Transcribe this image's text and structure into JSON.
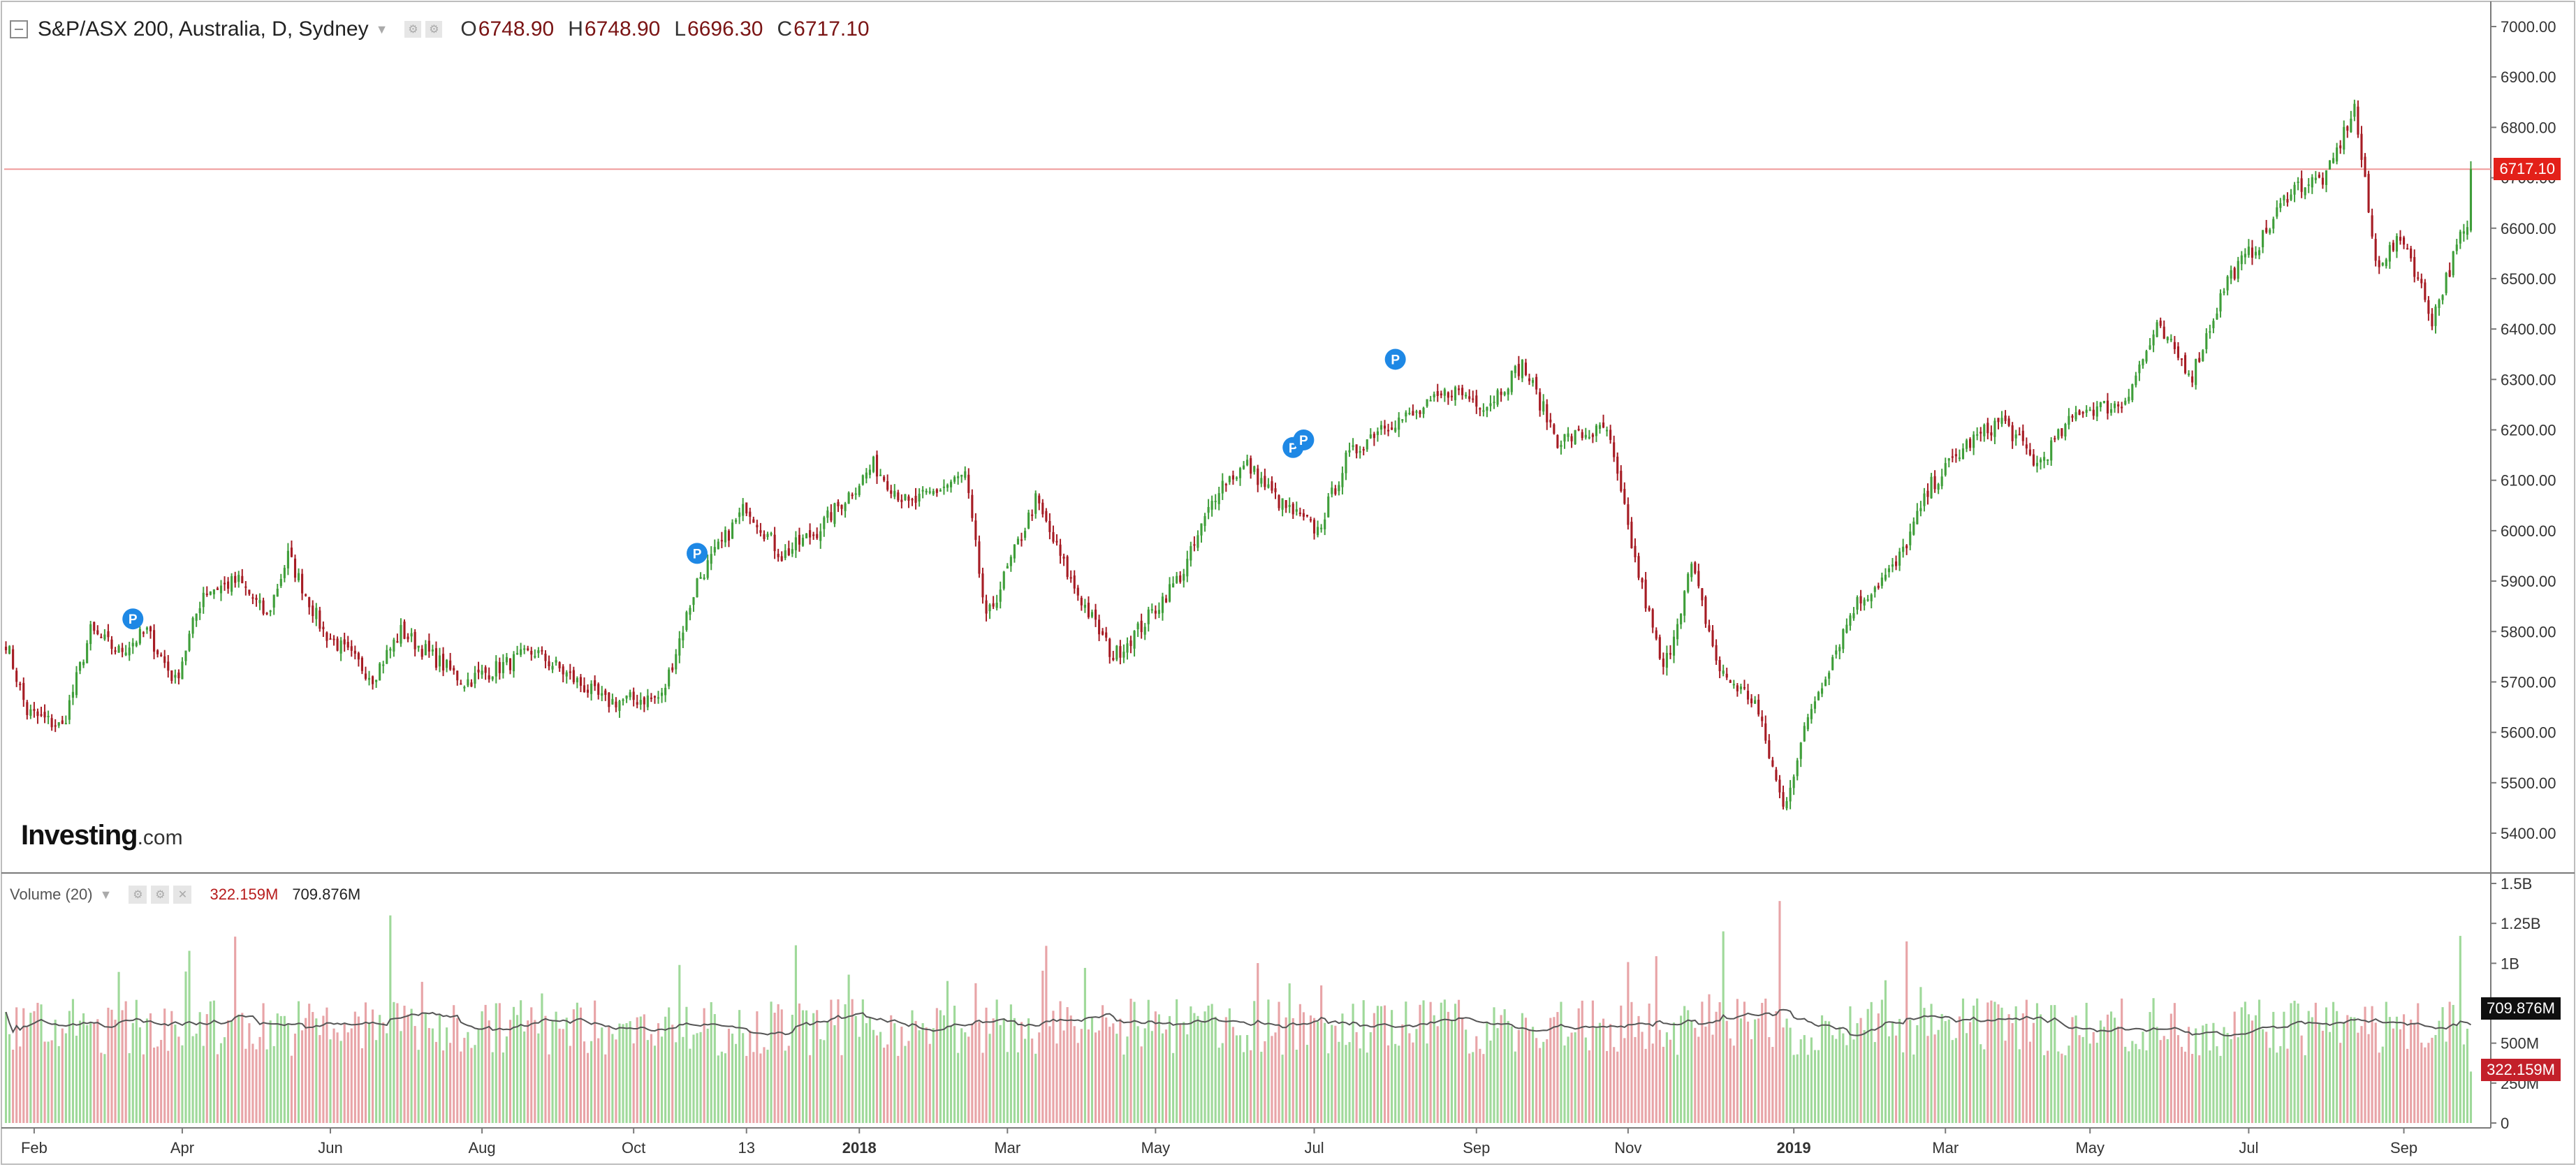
{
  "legend": {
    "symbol": "S&P/ASX 200, Australia, D, Sydney",
    "ohlc": [
      {
        "label": "O",
        "value": "6748.90"
      },
      {
        "label": "H",
        "value": "6748.90"
      },
      {
        "label": "L",
        "value": "6696.30"
      },
      {
        "label": "C",
        "value": "6717.10"
      }
    ]
  },
  "volume_legend": {
    "title": "Volume (20)",
    "value_1": "322.159M",
    "value_2": "709.876M"
  },
  "logo": {
    "text": "Investing",
    "suffix": ".com"
  },
  "last_price_tag": "6717.10",
  "volume_tags": {
    "ma": "709.876M",
    "last": "322.159M"
  },
  "colors": {
    "up": "#3f9e3a",
    "down": "#a61c24",
    "volume_up": "#9fd99a",
    "volume_down": "#e8a4a7",
    "price_line": "#ef9a9a",
    "price_tag": "#e32019",
    "volume_ma": "#555555"
  },
  "icons": [
    "collapse-icon",
    "dropdown-caret-icon",
    "settings-icon",
    "hide-icon",
    "close-icon",
    "dividend-marker-icon"
  ],
  "chart_data": [
    {
      "type": "candlestick",
      "title": "S&P/ASX 200, Australia, D, Sydney",
      "y_ticks": [
        "7000.00",
        "6900.00",
        "6800.00",
        "6700.00",
        "6600.00",
        "6500.00",
        "6400.00",
        "6300.00",
        "6200.00",
        "6100.00",
        "6000.00",
        "5900.00",
        "5800.00",
        "5700.00",
        "5600.00",
        "5500.00",
        "5400.00"
      ],
      "ylim": [
        5355,
        7030
      ],
      "x_ticks": [
        {
          "label": "Feb",
          "t": 8
        },
        {
          "label": "Apr",
          "t": 50
        },
        {
          "label": "Jun",
          "t": 92
        },
        {
          "label": "Aug",
          "t": 135
        },
        {
          "label": "Oct",
          "t": 178
        },
        {
          "label": "13",
          "t": 210
        },
        {
          "label": "2018",
          "t": 242,
          "bold": true
        },
        {
          "label": "Mar",
          "t": 284
        },
        {
          "label": "May",
          "t": 326
        },
        {
          "label": "Jul",
          "t": 371
        },
        {
          "label": "Sep",
          "t": 417
        },
        {
          "label": "Nov",
          "t": 460
        },
        {
          "label": "2019",
          "t": 507,
          "bold": true
        },
        {
          "label": "Mar",
          "t": 550
        },
        {
          "label": "May",
          "t": 591
        },
        {
          "label": "Jul",
          "t": 636
        },
        {
          "label": "Sep",
          "t": 680
        }
      ],
      "bar_count": 700,
      "close_anchors": [
        [
          0,
          5780
        ],
        [
          6,
          5640
        ],
        [
          16,
          5610
        ],
        [
          24,
          5800
        ],
        [
          32,
          5760
        ],
        [
          40,
          5800
        ],
        [
          48,
          5700
        ],
        [
          56,
          5880
        ],
        [
          66,
          5900
        ],
        [
          74,
          5830
        ],
        [
          80,
          5950
        ],
        [
          90,
          5800
        ],
        [
          104,
          5710
        ],
        [
          112,
          5800
        ],
        [
          130,
          5700
        ],
        [
          150,
          5760
        ],
        [
          170,
          5660
        ],
        [
          186,
          5670
        ],
        [
          196,
          5900
        ],
        [
          210,
          6050
        ],
        [
          220,
          5950
        ],
        [
          230,
          6000
        ],
        [
          240,
          6080
        ],
        [
          246,
          6130
        ],
        [
          256,
          6050
        ],
        [
          272,
          6110
        ],
        [
          278,
          5820
        ],
        [
          292,
          6060
        ],
        [
          302,
          5900
        ],
        [
          314,
          5750
        ],
        [
          322,
          5810
        ],
        [
          334,
          5920
        ],
        [
          344,
          6090
        ],
        [
          352,
          6130
        ],
        [
          362,
          6050
        ],
        [
          372,
          6000
        ],
        [
          380,
          6140
        ],
        [
          390,
          6210
        ],
        [
          400,
          6230
        ],
        [
          410,
          6280
        ],
        [
          420,
          6250
        ],
        [
          430,
          6330
        ],
        [
          440,
          6180
        ],
        [
          454,
          6200
        ],
        [
          462,
          5940
        ],
        [
          470,
          5720
        ],
        [
          478,
          5930
        ],
        [
          486,
          5720
        ],
        [
          496,
          5660
        ],
        [
          504,
          5450
        ],
        [
          512,
          5650
        ],
        [
          524,
          5850
        ],
        [
          536,
          5930
        ],
        [
          546,
          6090
        ],
        [
          556,
          6170
        ],
        [
          566,
          6220
        ],
        [
          576,
          6130
        ],
        [
          588,
          6240
        ],
        [
          600,
          6250
        ],
        [
          610,
          6400
        ],
        [
          620,
          6310
        ],
        [
          630,
          6500
        ],
        [
          640,
          6580
        ],
        [
          648,
          6680
        ],
        [
          658,
          6700
        ],
        [
          666,
          6840
        ],
        [
          672,
          6530
        ],
        [
          680,
          6580
        ],
        [
          688,
          6420
        ],
        [
          696,
          6580
        ],
        [
          706,
          6660
        ],
        [
          714,
          6720
        ]
      ],
      "dividend_markers": [
        {
          "t": 36,
          "y": 5825
        },
        {
          "t": 196,
          "y": 5955
        },
        {
          "t": 365,
          "y": 6165
        },
        {
          "t": 368,
          "y": 6180
        },
        {
          "t": 394,
          "y": 6340
        }
      ],
      "last_close": 6717.1
    },
    {
      "type": "bar",
      "title": "Volume (20)",
      "y_ticks": [
        "1.5B",
        "1.25B",
        "1B",
        "750M",
        "500M",
        "250M",
        "0"
      ],
      "ylim": [
        0,
        1500000000
      ],
      "ma_period": 20,
      "latest_volume": "322.159M",
      "latest_ma": "709.876M"
    }
  ]
}
